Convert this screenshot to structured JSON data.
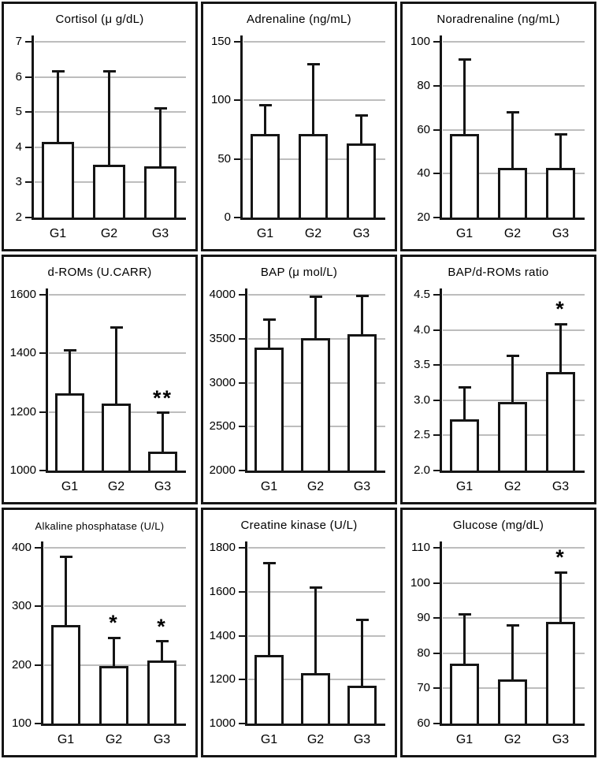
{
  "figure": {
    "description": "3x3 grid of bar charts comparing groups G1, G2, G3 with standard-deviation error bars",
    "group_labels": [
      "G1",
      "G2",
      "G3"
    ],
    "significance_legend": {
      "single": "*",
      "double": "**"
    }
  },
  "colors": {
    "background": "#ffffff",
    "bar_fill": "#ffffff",
    "line": "#151515",
    "gridline": "#bdbdbd",
    "text": "#000000"
  },
  "chart_data": [
    {
      "type": "bar",
      "title": "Cortisol (μ g/dL)",
      "categories": [
        "G1",
        "G2",
        "G3"
      ],
      "values": [
        4.15,
        3.5,
        3.45
      ],
      "error_upper": [
        6.15,
        6.15,
        5.1
      ],
      "significance": [
        "",
        "",
        ""
      ],
      "ylim": [
        2,
        7
      ],
      "ytick_labels": [
        "2",
        "3",
        "4",
        "5",
        "6",
        "7"
      ],
      "grid": true,
      "legend": false
    },
    {
      "type": "bar",
      "title": "Adrenaline (ng/mL)",
      "categories": [
        "G1",
        "G2",
        "G3"
      ],
      "values": [
        71,
        71,
        63
      ],
      "error_upper": [
        96,
        131,
        87
      ],
      "significance": [
        "",
        "",
        ""
      ],
      "ylim": [
        0,
        150
      ],
      "ytick_labels": [
        "0",
        "50",
        "100",
        "150"
      ],
      "grid": true,
      "legend": false
    },
    {
      "type": "bar",
      "title": "Noradrenaline (ng/mL)",
      "categories": [
        "G1",
        "G2",
        "G3"
      ],
      "values": [
        58,
        42.5,
        42.5
      ],
      "error_upper": [
        92,
        68,
        58
      ],
      "significance": [
        "",
        "",
        ""
      ],
      "ylim": [
        20,
        100
      ],
      "ytick_labels": [
        "20",
        "40",
        "60",
        "80",
        "100"
      ],
      "grid": true,
      "legend": false
    },
    {
      "type": "bar",
      "title": "d-ROMs (U.CARR)",
      "categories": [
        "G1",
        "G2",
        "G3"
      ],
      "values": [
        1265,
        1228,
        1065
      ],
      "error_upper": [
        1410,
        1487,
        1197
      ],
      "significance": [
        "",
        "",
        "**"
      ],
      "ylim": [
        1000,
        1600
      ],
      "ytick_labels": [
        "1000",
        "1200",
        "1400",
        "1600"
      ],
      "grid": true,
      "legend": false
    },
    {
      "type": "bar",
      "title": "BAP (μ mol/L)",
      "categories": [
        "G1",
        "G2",
        "G3"
      ],
      "values": [
        3400,
        3510,
        3550
      ],
      "error_upper": [
        3720,
        3975,
        3990
      ],
      "significance": [
        "",
        "",
        ""
      ],
      "ylim": [
        2000,
        4000
      ],
      "ytick_labels": [
        "2000",
        "2500",
        "3000",
        "3500",
        "4000"
      ],
      "grid": true,
      "legend": false
    },
    {
      "type": "bar",
      "title": "BAP/d-ROMs ratio",
      "categories": [
        "G1",
        "G2",
        "G3"
      ],
      "values": [
        2.73,
        2.97,
        3.4
      ],
      "error_upper": [
        3.18,
        3.63,
        4.08
      ],
      "significance": [
        "",
        "",
        "*"
      ],
      "ylim": [
        2.0,
        4.5
      ],
      "ytick_labels": [
        "2.0",
        "2.5",
        "3.0",
        "3.5",
        "4.0",
        "4.5"
      ],
      "grid": true,
      "legend": false
    },
    {
      "type": "bar",
      "title": "Alkaline phosphatase (U/L)",
      "categories": [
        "G1",
        "G2",
        "G3"
      ],
      "values": [
        268,
        198,
        208
      ],
      "error_upper": [
        384,
        246,
        240
      ],
      "significance": [
        "",
        "*",
        "*"
      ],
      "ylim": [
        100,
        400
      ],
      "ytick_labels": [
        "100",
        "200",
        "300",
        "400"
      ],
      "grid": true,
      "legend": false
    },
    {
      "type": "bar",
      "title": "Creatine kinase (U/L)",
      "categories": [
        "G1",
        "G2",
        "G3"
      ],
      "values": [
        1312,
        1230,
        1172
      ],
      "error_upper": [
        1730,
        1618,
        1470
      ],
      "significance": [
        "",
        "",
        ""
      ],
      "ylim": [
        1000,
        1800
      ],
      "ytick_labels": [
        "1000",
        "1200",
        "1400",
        "1600",
        "1800"
      ],
      "grid": true,
      "legend": false
    },
    {
      "type": "bar",
      "title": "Glucose (mg/dL)",
      "categories": [
        "G1",
        "G2",
        "G3"
      ],
      "values": [
        77,
        72.5,
        89
      ],
      "error_upper": [
        91,
        88,
        103
      ],
      "significance": [
        "",
        "",
        "*"
      ],
      "ylim": [
        60,
        110
      ],
      "ytick_labels": [
        "60",
        "70",
        "80",
        "90",
        "100",
        "110"
      ],
      "grid": true,
      "legend": false
    }
  ]
}
